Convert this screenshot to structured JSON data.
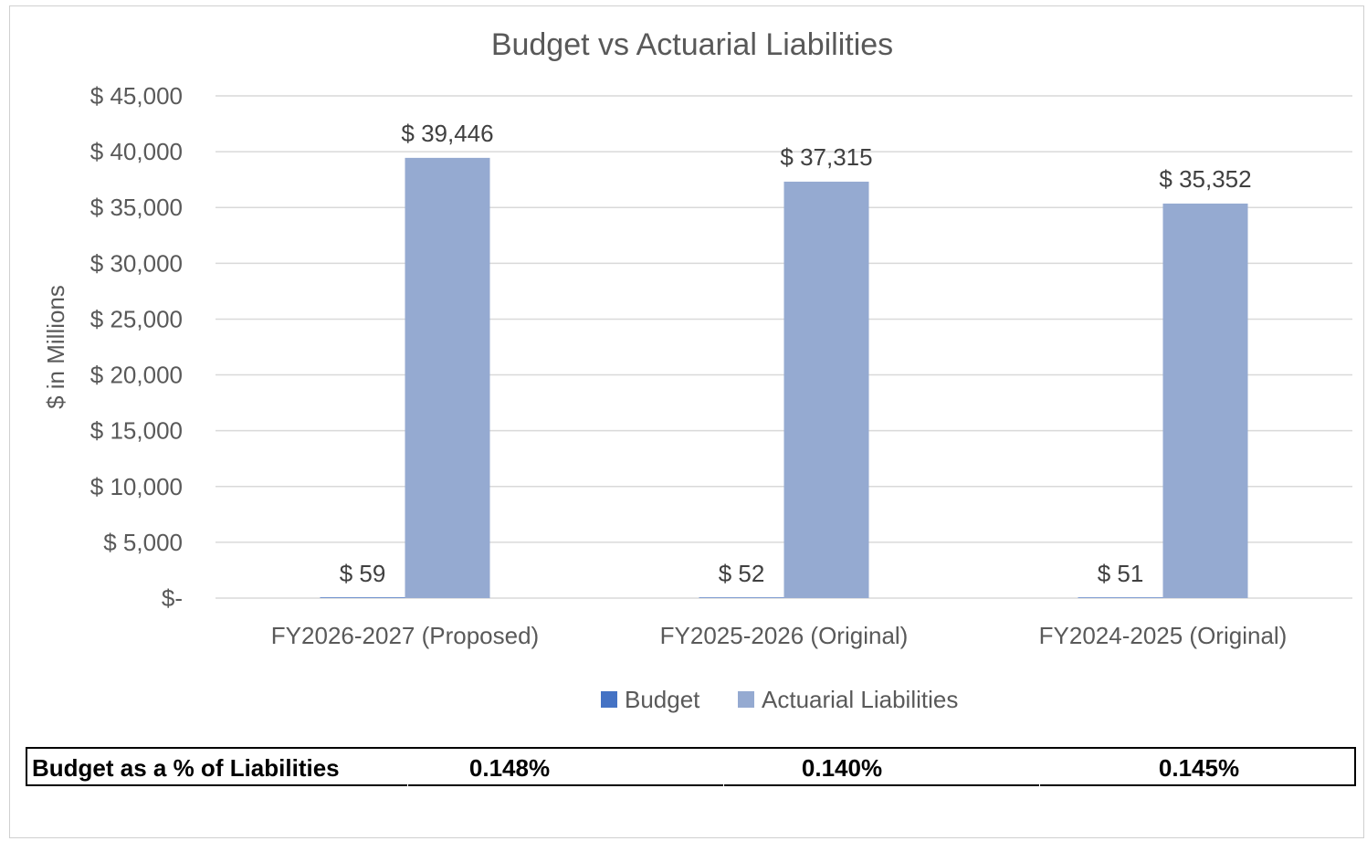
{
  "chart_data": {
    "type": "bar",
    "title": "Budget vs Actuarial Liabilities",
    "ylabel": "$ in Millions",
    "xlabel": "",
    "categories": [
      "FY2026-2027 (Proposed)",
      "FY2025-2026 (Original)",
      "FY2024-2025 (Original)"
    ],
    "series": [
      {
        "name": "Budget",
        "values": [
          59,
          52,
          51
        ],
        "labels": [
          "$ 59",
          "$ 52",
          "$ 51"
        ],
        "color": "#4472c4"
      },
      {
        "name": "Actuarial Liabilities",
        "values": [
          39446,
          37315,
          35352
        ],
        "labels": [
          "$ 39,446",
          "$ 37,315",
          "$ 35,352"
        ],
        "color": "#95aad1"
      }
    ],
    "ylim": [
      0,
      45000
    ],
    "yticks": [
      0,
      5000,
      10000,
      15000,
      20000,
      25000,
      30000,
      35000,
      40000,
      45000
    ],
    "ytick_labels": [
      "$-",
      "$ 5,000",
      "$ 10,000",
      "$ 15,000",
      "$ 20,000",
      "$ 25,000",
      "$ 30,000",
      "$ 35,000",
      "$ 40,000",
      "$ 45,000"
    ],
    "grid": true,
    "legend_position": "bottom"
  },
  "table": {
    "label": "Budget as a % of Liabilities",
    "values": [
      "0.148%",
      "0.140%",
      "0.145%"
    ]
  },
  "colors": {
    "gridline": "#d9d9d9",
    "text": "#595959",
    "label_text": "#404040"
  }
}
